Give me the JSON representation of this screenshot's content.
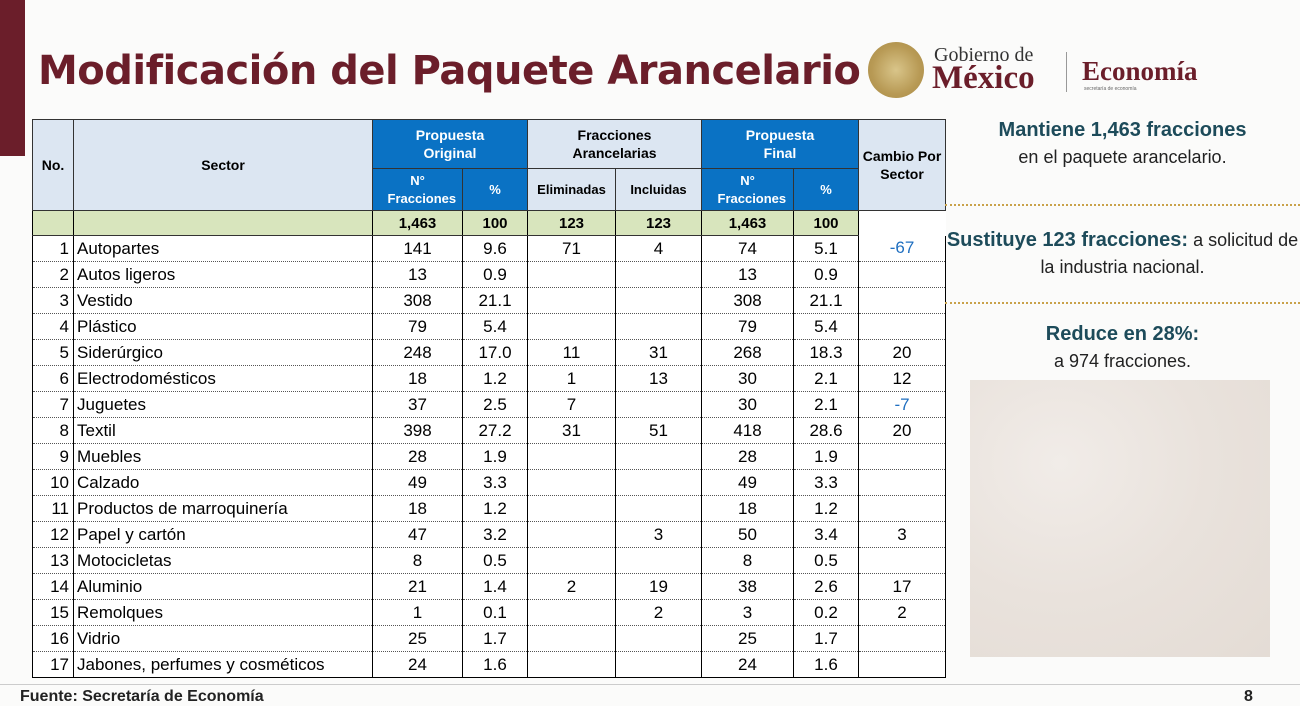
{
  "header": {
    "title": "Modificación del Paquete Arancelario",
    "logo": {
      "gobierno": "Gobierno de",
      "mexico": "México",
      "dependencia": "Economía",
      "dependencia_sub": "secretaría de economía"
    }
  },
  "table": {
    "group_headers": [
      "No.",
      "Sector",
      "Propuesta Original",
      "Fracciones Arancelarias",
      "Propuesta Final",
      "Cambio Por Sector"
    ],
    "sub_headers": [
      "N° Fracciones",
      "%",
      "Eliminadas",
      "Incluidas",
      "N° Fracciones",
      "%"
    ],
    "total": [
      null,
      null,
      "1,463",
      "100",
      "123",
      "123",
      "1,463",
      "100",
      null
    ],
    "rows": [
      [
        "1",
        "Autopartes",
        "141",
        "9.6",
        "71",
        "4",
        "74",
        "5.1",
        "-67"
      ],
      [
        "2",
        "Autos ligeros",
        "13",
        "0.9",
        null,
        null,
        "13",
        "0.9",
        null
      ],
      [
        "3",
        "Vestido",
        "308",
        "21.1",
        null,
        null,
        "308",
        "21.1",
        null
      ],
      [
        "4",
        "Plástico",
        "79",
        "5.4",
        null,
        null,
        "79",
        "5.4",
        null
      ],
      [
        "5",
        "Siderúrgico",
        "248",
        "17.0",
        "11",
        "31",
        "268",
        "18.3",
        "20"
      ],
      [
        "6",
        "Electrodomésticos",
        "18",
        "1.2",
        "1",
        "13",
        "30",
        "2.1",
        "12"
      ],
      [
        "7",
        "Juguetes",
        "37",
        "2.5",
        "7",
        null,
        "30",
        "2.1",
        "-7"
      ],
      [
        "8",
        "Textil",
        "398",
        "27.2",
        "31",
        "51",
        "418",
        "28.6",
        "20"
      ],
      [
        "9",
        "Muebles",
        "28",
        "1.9",
        null,
        null,
        "28",
        "1.9",
        null
      ],
      [
        "10",
        "Calzado",
        "49",
        "3.3",
        null,
        null,
        "49",
        "3.3",
        null
      ],
      [
        "11",
        "Productos de marroquinería",
        "18",
        "1.2",
        null,
        null,
        "18",
        "1.2",
        null
      ],
      [
        "12",
        "Papel y cartón",
        "47",
        "3.2",
        null,
        "3",
        "50",
        "3.4",
        "3"
      ],
      [
        "13",
        "Motocicletas",
        "8",
        "0.5",
        null,
        null,
        "8",
        "0.5",
        null
      ],
      [
        "14",
        "Aluminio",
        "21",
        "1.4",
        "2",
        "19",
        "38",
        "2.6",
        "17"
      ],
      [
        "15",
        "Remolques",
        "1",
        "0.1",
        null,
        "2",
        "3",
        "0.2",
        "2"
      ],
      [
        "16",
        "Vidrio",
        "25",
        "1.7",
        null,
        null,
        "25",
        "1.7",
        null
      ],
      [
        "17",
        "Jabones, perfumes y cosméticos",
        "24",
        "1.6",
        null,
        null,
        "24",
        "1.6",
        null
      ]
    ]
  },
  "notes": [
    {
      "bold": "Mantiene 1,463 fracciones",
      "text": "en el paquete arancelario."
    },
    {
      "bold": "Sustituye 123 fracciones:",
      "text": "a solicitud de la industria nacional."
    },
    {
      "bold": "Reduce en 28%:",
      "text": "a 974 fracciones."
    }
  ],
  "footer": {
    "source": "Fuente: Secretaría de Economía",
    "page": "8"
  }
}
